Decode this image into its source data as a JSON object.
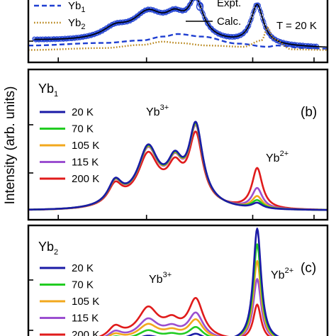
{
  "ylabel": "Intensity (arb. units)",
  "panels": [
    {
      "id": "a",
      "legend": {
        "yb1": "Yb",
        "yb1_sub": "1",
        "yb2": "Yb",
        "yb2_sub": "2",
        "expt": "Expt.",
        "calc": "Calc."
      },
      "temperature": "T = 20 K"
    },
    {
      "id": "b",
      "title": "Yb",
      "title_sub": "1",
      "panel_label": "(b)",
      "ion_labels": [
        {
          "base": "Yb",
          "sup": "3+"
        },
        {
          "base": "Yb",
          "sup": "2+"
        }
      ]
    },
    {
      "id": "c",
      "title": "Yb",
      "title_sub": "2",
      "panel_label": "(c)",
      "ion_labels": [
        {
          "base": "Yb",
          "sup": "3+"
        },
        {
          "base": "Yb",
          "sup": "2+"
        }
      ]
    }
  ],
  "chart_data": [
    {
      "type": "line",
      "panel": "a",
      "temperature_K": 20,
      "x_unit": "normalized energy (no tick labels shown)",
      "xlim": [
        0,
        1
      ],
      "series": [
        {
          "name": "Yb1",
          "style": "dashed",
          "color": "#1f3fd1",
          "points": [
            [
              0,
              0.22
            ],
            [
              0.25,
              0.26
            ],
            [
              0.38,
              0.3
            ],
            [
              0.45,
              0.36
            ],
            [
              0.5,
              0.4
            ],
            [
              0.58,
              0.36
            ],
            [
              0.7,
              0.25
            ],
            [
              0.8,
              0.2
            ],
            [
              0.83,
              0.22
            ],
            [
              0.92,
              0.18
            ],
            [
              1,
              0.17
            ]
          ]
        },
        {
          "name": "Yb2",
          "style": "dotted",
          "color": "#b8861b",
          "points": [
            [
              0,
              0.15
            ],
            [
              0.25,
              0.18
            ],
            [
              0.38,
              0.23
            ],
            [
              0.45,
              0.28
            ],
            [
              0.5,
              0.26
            ],
            [
              0.6,
              0.22
            ],
            [
              0.72,
              0.2
            ],
            [
              0.78,
              0.3
            ],
            [
              0.8,
              0.5
            ],
            [
              0.82,
              0.32
            ],
            [
              0.88,
              0.16
            ],
            [
              1,
              0.15
            ]
          ]
        },
        {
          "name": "Expt.",
          "style": "markers",
          "color": "#1f3fd1"
        },
        {
          "name": "Calc.",
          "style": "solid",
          "color": "#000000"
        }
      ]
    },
    {
      "type": "line",
      "panel": "b",
      "title": "Yb1",
      "xlim": [
        0,
        1
      ],
      "ylim": [
        0,
        1
      ],
      "series": [
        {
          "name": "20 K",
          "color": "#1a1aa6",
          "yb3_peak": 0.79,
          "yb2_peak": 0.04
        },
        {
          "name": "70 K",
          "color": "#22cc22",
          "yb3_peak": 0.78,
          "yb2_peak": 0.06
        },
        {
          "name": "105 K",
          "color": "#f2a81d",
          "yb3_peak": 0.77,
          "yb2_peak": 0.09
        },
        {
          "name": "115 K",
          "color": "#9b4fd0",
          "yb3_peak": 0.76,
          "yb2_peak": 0.15
        },
        {
          "name": "200 K",
          "color": "#e01b1b",
          "yb3_peak": 0.7,
          "yb2_peak": 0.3
        }
      ]
    },
    {
      "type": "line",
      "panel": "c",
      "title": "Yb2",
      "xlim": [
        0,
        1
      ],
      "ylim": [
        0,
        1
      ],
      "series": [
        {
          "name": "20 K",
          "color": "#1a1aa6",
          "yb3_peak": 0.08,
          "yb2_peak": 1.0
        },
        {
          "name": "70 K",
          "color": "#22cc22",
          "yb3_peak": 0.15,
          "yb2_peak": 0.86
        },
        {
          "name": "105 K",
          "color": "#f2a81d",
          "yb3_peak": 0.23,
          "yb2_peak": 0.71
        },
        {
          "name": "115 K",
          "color": "#9b4fd0",
          "yb3_peak": 0.3,
          "yb2_peak": 0.55
        },
        {
          "name": "200 K",
          "color": "#e01b1b",
          "yb3_peak": 0.45,
          "yb2_peak": 0.32
        }
      ]
    }
  ]
}
